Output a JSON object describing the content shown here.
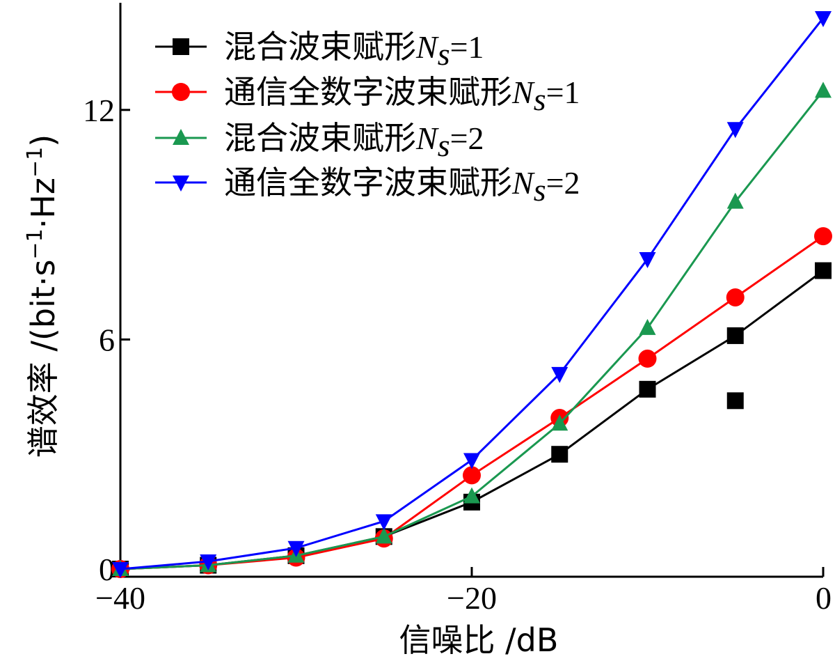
{
  "chart_data": {
    "type": "line",
    "xlabel": "信噪比 /dB",
    "ylabel_prefix": "谱效率 /(bit·s",
    "ylabel_mid": "·Hz",
    "ylabel_suffix": ")",
    "ylabel_sup": "−1",
    "xlim": [
      -40,
      0
    ],
    "ylim": [
      -0.2,
      14.8
    ],
    "xticks": [
      -40,
      -20,
      0
    ],
    "xtick_labels": [
      "−40",
      "−20",
      "0"
    ],
    "yticks": [
      0,
      6,
      12
    ],
    "ytick_labels": [
      "0",
      "6",
      "12"
    ],
    "legend_position": "top-left",
    "series": [
      {
        "name": "混合波束赋形",
        "sym": "N",
        "sub": "s",
        "eq": "=1",
        "color": "#000000",
        "marker": "square",
        "x": [
          -40,
          -35,
          -30,
          -25,
          -20,
          -15,
          -10,
          -5,
          0
        ],
        "y": [
          0.0,
          0.1,
          0.35,
          0.85,
          1.75,
          3.0,
          4.7,
          6.1,
          7.8
        ]
      },
      {
        "name": "通信全数字波束赋形",
        "sym": "N",
        "sub": "s",
        "eq": "=1",
        "color": "#ff0000",
        "marker": "circle",
        "x": [
          -40,
          -35,
          -30,
          -25,
          -20,
          -15,
          -10,
          -5,
          0
        ],
        "y": [
          0.0,
          0.1,
          0.3,
          0.8,
          2.45,
          3.95,
          5.5,
          7.1,
          8.7
        ]
      },
      {
        "name": "混合波束赋形",
        "sym": "N",
        "sub": "s",
        "eq": "=2",
        "color": "#1a9850",
        "marker": "triangle-up",
        "x": [
          -40,
          -35,
          -30,
          -25,
          -20,
          -15,
          -10,
          -5,
          0
        ],
        "y": [
          0.0,
          0.1,
          0.35,
          0.85,
          1.9,
          3.8,
          6.3,
          9.6,
          12.5
        ]
      },
      {
        "name": "通信全数字波束赋形",
        "sym": "N",
        "sub": "s",
        "eq": "=2",
        "color": "#0000ff",
        "marker": "triangle-down",
        "x": [
          -40,
          -35,
          -30,
          -25,
          -20,
          -15,
          -10,
          -5,
          0
        ],
        "y": [
          0.0,
          0.2,
          0.55,
          1.25,
          2.85,
          5.1,
          8.1,
          11.5,
          14.4
        ]
      }
    ],
    "outliers": [
      {
        "series_index": 0,
        "x": -5,
        "y": 4.4
      }
    ]
  }
}
